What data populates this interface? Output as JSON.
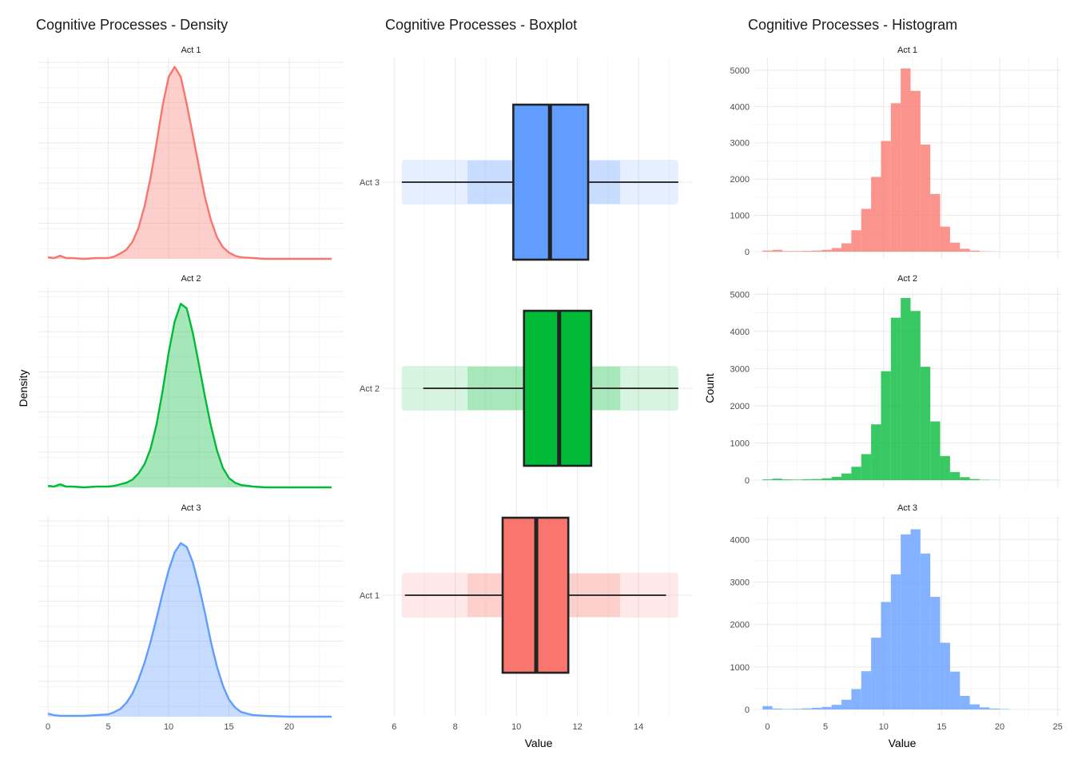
{
  "chart_data": [
    {
      "type": "area",
      "title": "Cognitive Processes - Density",
      "xlabel": "",
      "ylabel": "Density",
      "xlim": [
        -0.8,
        24.5
      ],
      "ylim": [
        0,
        0.26
      ],
      "xticks": [
        "0",
        "5",
        "10",
        "15",
        "20"
      ],
      "grid": true,
      "facets": [
        {
          "label": "Act 1",
          "color": "#F8766D",
          "x": [
            0,
            0.5,
            1,
            1.5,
            2,
            3,
            4,
            5,
            5.5,
            6,
            6.5,
            7,
            7.5,
            8,
            8.5,
            9,
            9.5,
            10,
            10.5,
            11,
            11.5,
            12,
            12.5,
            13,
            13.5,
            14,
            14.5,
            15,
            15.5,
            16,
            17,
            18,
            20,
            23.5
          ],
          "y": [
            0.002,
            0.001,
            0.004,
            0.001,
            0.001,
            0,
            0.001,
            0.001,
            0.003,
            0.007,
            0.012,
            0.022,
            0.04,
            0.068,
            0.105,
            0.15,
            0.198,
            0.235,
            0.248,
            0.235,
            0.2,
            0.16,
            0.12,
            0.08,
            0.05,
            0.028,
            0.015,
            0.008,
            0.004,
            0.002,
            0.001,
            0,
            0,
            0
          ]
        },
        {
          "label": "Act 2",
          "color": "#00BA38",
          "x": [
            0,
            0.5,
            1,
            1.5,
            2,
            3,
            4,
            5,
            5.5,
            6,
            6.5,
            7,
            7.5,
            8,
            8.5,
            9,
            9.5,
            10,
            10.5,
            11,
            11.5,
            12,
            12.5,
            13,
            13.5,
            14,
            14.5,
            15,
            15.5,
            16,
            17,
            18,
            20,
            23.5
          ],
          "y": [
            0.002,
            0.001,
            0.004,
            0.001,
            0.001,
            0,
            0.001,
            0.001,
            0.002,
            0.004,
            0.006,
            0.01,
            0.018,
            0.03,
            0.05,
            0.082,
            0.125,
            0.175,
            0.215,
            0.238,
            0.232,
            0.2,
            0.16,
            0.118,
            0.08,
            0.048,
            0.025,
            0.012,
            0.006,
            0.003,
            0.001,
            0,
            0,
            0
          ]
        },
        {
          "label": "Act 3",
          "color": "#619CFF",
          "x": [
            0,
            0.5,
            1,
            1.5,
            2,
            3,
            4,
            5,
            5.5,
            6,
            6.5,
            7,
            7.5,
            8,
            8.5,
            9,
            9.5,
            10,
            10.5,
            11,
            11.5,
            12,
            12.5,
            13,
            13.5,
            14,
            14.5,
            15,
            15.5,
            16,
            17,
            18,
            20,
            23.5
          ],
          "y": [
            0.004,
            0.002,
            0.001,
            0.001,
            0.001,
            0.001,
            0.002,
            0.003,
            0.006,
            0.01,
            0.018,
            0.03,
            0.048,
            0.07,
            0.097,
            0.128,
            0.16,
            0.19,
            0.213,
            0.225,
            0.22,
            0.2,
            0.17,
            0.135,
            0.097,
            0.065,
            0.04,
            0.022,
            0.012,
            0.006,
            0.002,
            0.001,
            0,
            0
          ]
        }
      ]
    },
    {
      "type": "boxplot",
      "title": "Cognitive Processes - Boxplot",
      "xlabel": "Value",
      "ylabel": "",
      "xlim": [
        5.6,
        15.75
      ],
      "xticks": [
        "6",
        "8",
        "10",
        "12",
        "14"
      ],
      "grid": true,
      "groups": [
        {
          "label": "Act 3",
          "color": "#619CFF",
          "whisker_low": 6.25,
          "q1": 9.9,
          "median": 11.1,
          "q3": 12.35,
          "whisker_high": 15.3
        },
        {
          "label": "Act 2",
          "color": "#00BA38",
          "whisker_low": 6.95,
          "q1": 10.25,
          "median": 11.4,
          "q3": 12.45,
          "whisker_high": 15.3
        },
        {
          "label": "Act 1",
          "color": "#F8766D",
          "whisker_low": 6.35,
          "q1": 9.55,
          "median": 10.65,
          "q3": 11.7,
          "whisker_high": 14.9
        }
      ]
    },
    {
      "type": "bar",
      "title": "Cognitive Processes - Histogram",
      "xlabel": "Value",
      "ylabel": "Count",
      "xlim": [
        -1.2,
        25.3
      ],
      "xticks": [
        "0",
        "5",
        "10",
        "15",
        "20",
        "25"
      ],
      "bin_width": 0.85,
      "bin_centers": [
        0,
        0.85,
        1.7,
        2.55,
        3.4,
        4.25,
        5.1,
        5.95,
        6.8,
        7.65,
        8.5,
        9.35,
        10.2,
        11.05,
        11.9,
        12.75,
        13.6,
        14.45,
        15.3,
        16.15,
        17,
        17.85,
        18.7,
        19.55,
        20.4
      ],
      "grid": true,
      "facets": [
        {
          "label": "Act 1",
          "color": "#F8766D",
          "yticks": [
            0,
            1000,
            2000,
            3000,
            4000,
            5000
          ],
          "ylim": [
            0,
            5350
          ],
          "counts": [
            30,
            50,
            15,
            15,
            20,
            30,
            50,
            100,
            230,
            590,
            1180,
            2060,
            3050,
            4090,
            5050,
            4430,
            2950,
            1590,
            690,
            250,
            80,
            30,
            10,
            5,
            0
          ]
        },
        {
          "label": "Act 2",
          "color": "#00BA38",
          "yticks": [
            0,
            1000,
            2000,
            3000,
            4000,
            5000
          ],
          "ylim": [
            0,
            5200
          ],
          "counts": [
            20,
            40,
            20,
            15,
            25,
            30,
            50,
            90,
            180,
            360,
            700,
            1500,
            2930,
            4370,
            4900,
            4550,
            3050,
            1580,
            650,
            220,
            80,
            30,
            10,
            5,
            0
          ]
        },
        {
          "label": "Act 3",
          "color": "#619CFF",
          "yticks": [
            0,
            1000,
            2000,
            3000,
            4000
          ],
          "ylim": [
            0,
            4550
          ],
          "counts": [
            80,
            20,
            10,
            15,
            25,
            40,
            60,
            110,
            230,
            480,
            900,
            1690,
            2530,
            3180,
            4120,
            4240,
            3670,
            2650,
            1570,
            890,
            320,
            120,
            50,
            20,
            10
          ]
        }
      ]
    }
  ]
}
